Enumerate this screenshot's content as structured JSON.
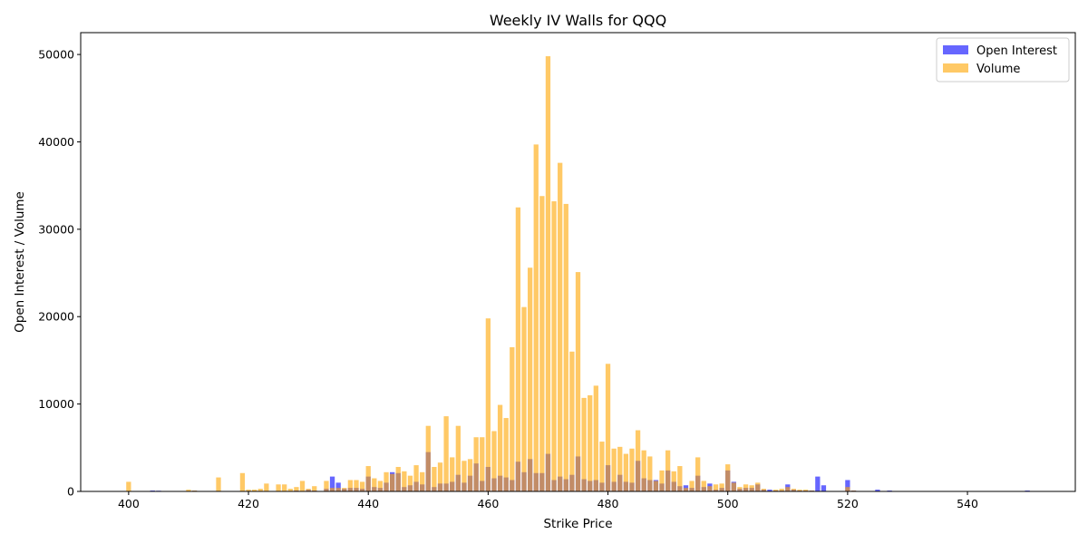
{
  "chart_data": {
    "type": "bar",
    "title": "Weekly IV Walls for QQQ",
    "xlabel": "Strike Price",
    "ylabel": "Open Interest / Volume",
    "xlim": [
      392,
      558
    ],
    "ylim": [
      0,
      52500
    ],
    "xticks": [
      400,
      420,
      440,
      460,
      480,
      500,
      520,
      540
    ],
    "yticks": [
      0,
      10000,
      20000,
      30000,
      40000,
      50000
    ],
    "grid": false,
    "legend_position": "top-right",
    "series": [
      {
        "name": "Open Interest",
        "color": "#0000ff",
        "opacity": 0.6,
        "points": [
          [
            404,
            100
          ],
          [
            405,
            80
          ],
          [
            410,
            50
          ],
          [
            411,
            80
          ],
          [
            415,
            60
          ],
          [
            417,
            50
          ],
          [
            420,
            60
          ],
          [
            425,
            50
          ],
          [
            428,
            100
          ],
          [
            430,
            200
          ],
          [
            431,
            100
          ],
          [
            433,
            300
          ],
          [
            434,
            1700
          ],
          [
            435,
            1000
          ],
          [
            436,
            300
          ],
          [
            437,
            400
          ],
          [
            438,
            400
          ],
          [
            439,
            300
          ],
          [
            440,
            1700
          ],
          [
            441,
            500
          ],
          [
            442,
            400
          ],
          [
            443,
            1000
          ],
          [
            444,
            2200
          ],
          [
            445,
            2100
          ],
          [
            446,
            500
          ],
          [
            447,
            700
          ],
          [
            448,
            1100
          ],
          [
            449,
            800
          ],
          [
            450,
            4500
          ],
          [
            451,
            500
          ],
          [
            452,
            900
          ],
          [
            453,
            900
          ],
          [
            454,
            1100
          ],
          [
            455,
            1900
          ],
          [
            456,
            1000
          ],
          [
            457,
            1800
          ],
          [
            458,
            3200
          ],
          [
            459,
            1200
          ],
          [
            460,
            2800
          ],
          [
            461,
            1500
          ],
          [
            462,
            1800
          ],
          [
            463,
            1600
          ],
          [
            464,
            1300
          ],
          [
            465,
            3400
          ],
          [
            466,
            2200
          ],
          [
            467,
            3700
          ],
          [
            468,
            2100
          ],
          [
            469,
            2100
          ],
          [
            470,
            4300
          ],
          [
            471,
            1300
          ],
          [
            472,
            1700
          ],
          [
            473,
            1400
          ],
          [
            474,
            1900
          ],
          [
            475,
            4000
          ],
          [
            476,
            1400
          ],
          [
            477,
            1200
          ],
          [
            478,
            1300
          ],
          [
            479,
            1000
          ],
          [
            480,
            3000
          ],
          [
            481,
            1100
          ],
          [
            482,
            1900
          ],
          [
            483,
            1100
          ],
          [
            484,
            1000
          ],
          [
            485,
            3500
          ],
          [
            486,
            1500
          ],
          [
            487,
            1300
          ],
          [
            488,
            1300
          ],
          [
            489,
            900
          ],
          [
            490,
            2400
          ],
          [
            491,
            1100
          ],
          [
            492,
            600
          ],
          [
            493,
            700
          ],
          [
            494,
            400
          ],
          [
            495,
            1800
          ],
          [
            496,
            500
          ],
          [
            497,
            900
          ],
          [
            498,
            200
          ],
          [
            499,
            400
          ],
          [
            500,
            2400
          ],
          [
            501,
            1100
          ],
          [
            502,
            300
          ],
          [
            503,
            400
          ],
          [
            504,
            400
          ],
          [
            505,
            800
          ],
          [
            506,
            200
          ],
          [
            507,
            200
          ],
          [
            508,
            100
          ],
          [
            509,
            100
          ],
          [
            510,
            800
          ],
          [
            511,
            200
          ],
          [
            512,
            100
          ],
          [
            513,
            100
          ],
          [
            514,
            100
          ],
          [
            515,
            1700
          ],
          [
            516,
            700
          ],
          [
            520,
            1300
          ],
          [
            521,
            100
          ],
          [
            525,
            200
          ],
          [
            527,
            100
          ],
          [
            550,
            100
          ]
        ]
      },
      {
        "name": "Volume",
        "color": "#ffa500",
        "opacity": 0.6,
        "points": [
          [
            400,
            1100
          ],
          [
            410,
            200
          ],
          [
            411,
            100
          ],
          [
            415,
            1600
          ],
          [
            419,
            2100
          ],
          [
            420,
            200
          ],
          [
            421,
            200
          ],
          [
            422,
            300
          ],
          [
            423,
            900
          ],
          [
            425,
            800
          ],
          [
            426,
            800
          ],
          [
            427,
            300
          ],
          [
            428,
            500
          ],
          [
            429,
            1200
          ],
          [
            430,
            300
          ],
          [
            431,
            600
          ],
          [
            433,
            1200
          ],
          [
            434,
            400
          ],
          [
            435,
            400
          ],
          [
            436,
            400
          ],
          [
            437,
            1300
          ],
          [
            438,
            1300
          ],
          [
            439,
            1100
          ],
          [
            440,
            2900
          ],
          [
            441,
            1500
          ],
          [
            442,
            1200
          ],
          [
            443,
            2200
          ],
          [
            444,
            2000
          ],
          [
            445,
            2800
          ],
          [
            446,
            2300
          ],
          [
            447,
            1800
          ],
          [
            448,
            3000
          ],
          [
            449,
            2200
          ],
          [
            450,
            7500
          ],
          [
            451,
            2800
          ],
          [
            452,
            3300
          ],
          [
            453,
            8600
          ],
          [
            454,
            3900
          ],
          [
            455,
            7500
          ],
          [
            456,
            3500
          ],
          [
            457,
            3700
          ],
          [
            458,
            6200
          ],
          [
            459,
            6200
          ],
          [
            460,
            19800
          ],
          [
            461,
            6900
          ],
          [
            462,
            9900
          ],
          [
            463,
            8400
          ],
          [
            464,
            16500
          ],
          [
            465,
            32500
          ],
          [
            466,
            21100
          ],
          [
            467,
            25600
          ],
          [
            468,
            39700
          ],
          [
            469,
            33800
          ],
          [
            470,
            49800
          ],
          [
            471,
            33200
          ],
          [
            472,
            37600
          ],
          [
            473,
            32900
          ],
          [
            474,
            16000
          ],
          [
            475,
            25100
          ],
          [
            476,
            10700
          ],
          [
            477,
            11000
          ],
          [
            478,
            12100
          ],
          [
            479,
            5700
          ],
          [
            480,
            14600
          ],
          [
            481,
            4900
          ],
          [
            482,
            5100
          ],
          [
            483,
            4300
          ],
          [
            484,
            4900
          ],
          [
            485,
            7000
          ],
          [
            486,
            4700
          ],
          [
            487,
            4000
          ],
          [
            488,
            1200
          ],
          [
            489,
            2400
          ],
          [
            490,
            4700
          ],
          [
            491,
            2300
          ],
          [
            492,
            2900
          ],
          [
            493,
            400
          ],
          [
            494,
            1200
          ],
          [
            495,
            3900
          ],
          [
            496,
            1200
          ],
          [
            497,
            600
          ],
          [
            498,
            800
          ],
          [
            499,
            900
          ],
          [
            500,
            3100
          ],
          [
            501,
            1000
          ],
          [
            502,
            500
          ],
          [
            503,
            800
          ],
          [
            504,
            700
          ],
          [
            505,
            1000
          ],
          [
            506,
            300
          ],
          [
            508,
            200
          ],
          [
            509,
            300
          ],
          [
            510,
            500
          ],
          [
            511,
            300
          ],
          [
            512,
            200
          ],
          [
            513,
            200
          ],
          [
            514,
            100
          ],
          [
            520,
            500
          ],
          [
            521,
            100
          ]
        ]
      }
    ]
  }
}
